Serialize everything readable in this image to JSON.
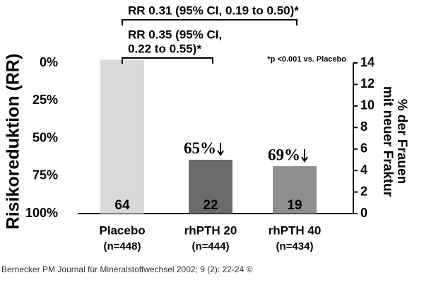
{
  "chart_data": {
    "type": "bar",
    "ylabel_left": "Risikoreduktion (RR)",
    "ylabel_right": [
      "% der Frauen",
      "mit neuer Fraktur"
    ],
    "categories": [
      "Placebo",
      "rhPTH 20",
      "rhPTH 40"
    ],
    "category_sublabels": [
      "(n=448)",
      "(n=444)",
      "(n=434)"
    ],
    "values": [
      14.3,
      5.0,
      4.4
    ],
    "counts": [
      "64",
      "22",
      "19"
    ],
    "colors": [
      "#d9d9d9",
      "#6b6b6b",
      "#8e8e8e"
    ],
    "count_colors": [
      "#000000",
      "#ffffff",
      "#ffffff"
    ],
    "reductions": [
      null,
      "65%",
      "69%"
    ],
    "ylim": [
      0,
      14
    ],
    "yticks": [
      0,
      2,
      4,
      6,
      8,
      10,
      12,
      14
    ],
    "y2lim": [
      100,
      0
    ],
    "y2ticks": [
      {
        "value": 0,
        "label": "0%"
      },
      {
        "value": 25,
        "label": "25%"
      },
      {
        "value": 50,
        "label": "50%"
      },
      {
        "value": 75,
        "label": "75%"
      },
      {
        "value": 100,
        "label": "100%"
      }
    ],
    "brackets": [
      {
        "from": 0,
        "to": 2,
        "lines": [
          "RR 0.31 (95% CI, 0.19 to 0.50)*"
        ]
      },
      {
        "from": 0,
        "to": 1,
        "lines": [
          "RR 0.35 (95% CI,",
          "0.22 to 0.55)*"
        ]
      }
    ],
    "footnote": "*p <0.001 vs. Placebo",
    "source": "Bernecker PM Journal für Mineralstoffwechsel 2002; 9 (2): 22-24 ©"
  }
}
